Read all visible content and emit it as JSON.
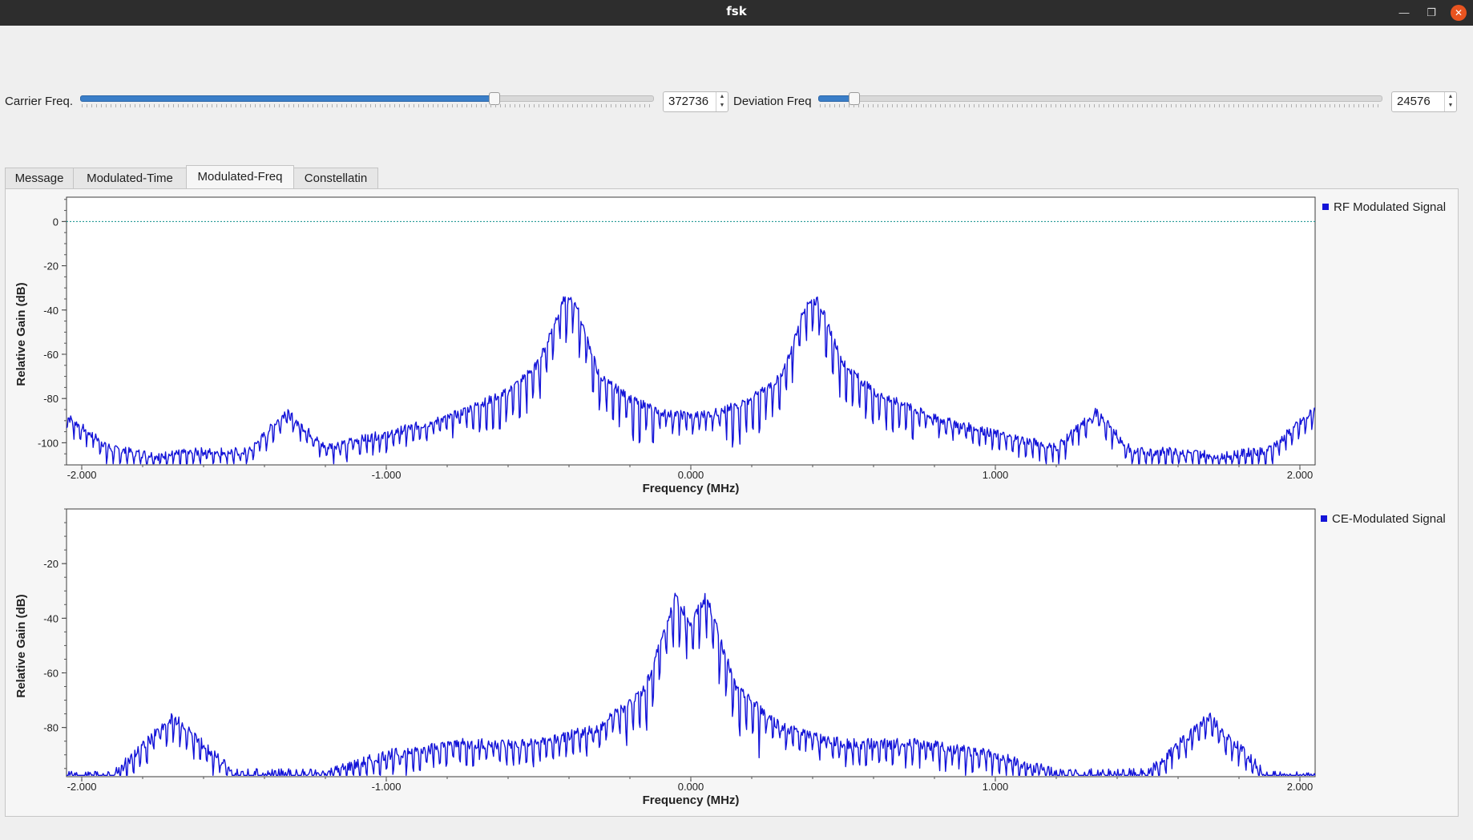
{
  "window": {
    "title": "fsk"
  },
  "controls": {
    "carrier_label": "Carrier Freq.",
    "carrier_value": "372736",
    "carrier_fraction": 0.725,
    "deviation_label": "Deviation Freq",
    "deviation_value": "24576",
    "deviation_fraction": 0.055
  },
  "tabs": [
    {
      "label": "Message"
    },
    {
      "label": "Modulated-Time"
    },
    {
      "label": "Modulated-Freq",
      "active": true
    },
    {
      "label": "Constellatin"
    }
  ],
  "chart_data": [
    {
      "type": "line",
      "legend": "RF Modulated Signal",
      "xlabel": "Frequency (MHz)",
      "ylabel": "Relative Gain (dB)",
      "xlim": [
        -2.05,
        2.05
      ],
      "ylim": [
        -110,
        11
      ],
      "x_ticks": [
        "-2.000",
        "-1.000",
        "0.000",
        "1.000",
        "2.000"
      ],
      "y_ticks": [
        "0",
        "-20",
        "-40",
        "-60",
        "-80",
        "-100"
      ],
      "reference_line_db": 0,
      "colors": {
        "line": "#1414d8",
        "reference": "#0b8f8a"
      },
      "series": [
        {
          "name": "RF Modulated Signal",
          "x": [
            -2.05,
            -1.9,
            -1.75,
            -1.6,
            -1.45,
            -1.33,
            -1.2,
            -1.0,
            -0.8,
            -0.6,
            -0.5,
            -0.42,
            -0.38,
            -0.3,
            -0.2,
            -0.1,
            0.0,
            0.1,
            0.2,
            0.3,
            0.38,
            0.42,
            0.5,
            0.6,
            0.8,
            1.0,
            1.2,
            1.33,
            1.45,
            1.6,
            1.75,
            1.9,
            2.05
          ],
          "y": [
            -88,
            -103,
            -106,
            -104,
            -104,
            -86,
            -102,
            -96,
            -89,
            -77,
            -64,
            -36,
            -36,
            -70,
            -80,
            -86,
            -88,
            -86,
            -80,
            -70,
            -36,
            -36,
            -64,
            -77,
            -89,
            -96,
            -102,
            -86,
            -104,
            -104,
            -106,
            -103,
            -85
          ]
        }
      ]
    },
    {
      "type": "line",
      "legend": "CE-Modulated Signal",
      "xlabel": "Frequency (MHz)",
      "ylabel": "Relative Gain (dB)",
      "xlim": [
        -2.05,
        2.05
      ],
      "ylim": [
        -98,
        0
      ],
      "x_ticks": [
        "-2.000",
        "-1.000",
        "0.000",
        "1.000",
        "2.000"
      ],
      "y_ticks": [
        "-20",
        "-40",
        "-60",
        "-80"
      ],
      "colors": {
        "line": "#1414d8"
      },
      "series": [
        {
          "name": "CE-Modulated Signal",
          "x": [
            -2.05,
            -1.9,
            -1.7,
            -1.5,
            -1.2,
            -1.0,
            -0.75,
            -0.5,
            -0.3,
            -0.15,
            -0.05,
            0.0,
            0.05,
            0.15,
            0.3,
            0.5,
            0.75,
            1.0,
            1.2,
            1.5,
            1.7,
            1.9,
            2.05
          ],
          "y": [
            -98,
            -98,
            -76,
            -97,
            -97,
            -90,
            -86,
            -86,
            -80,
            -66,
            -32,
            -42,
            -32,
            -66,
            -80,
            -86,
            -86,
            -90,
            -97,
            -97,
            -76,
            -98,
            -98
          ]
        }
      ]
    }
  ]
}
